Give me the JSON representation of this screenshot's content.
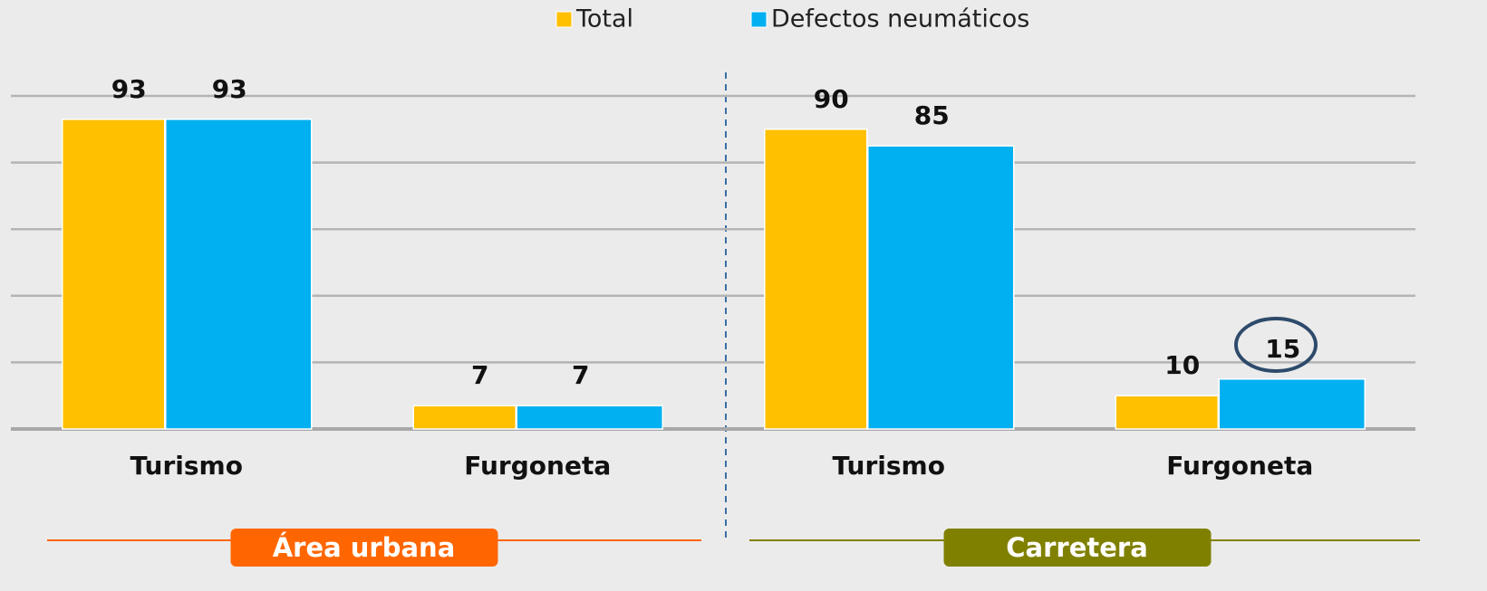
{
  "chart_data": {
    "type": "bar",
    "categories": [
      "Turismo",
      "Furgoneta",
      "Turismo",
      "Furgoneta"
    ],
    "series": [
      {
        "name": "Total",
        "color": "#ffc000",
        "values": [
          93,
          7,
          90,
          10
        ]
      },
      {
        "name": "Defectos neumáticos",
        "color": "#00b0f0",
        "values": [
          93,
          7,
          85,
          15
        ]
      }
    ],
    "groups": [
      {
        "label": "Área urbana",
        "color": "#ff6600"
      },
      {
        "label": "Carretera",
        "color": "#808000"
      }
    ],
    "ylim": [
      0,
      100
    ],
    "yticks": [
      0,
      20,
      40,
      60,
      80,
      100
    ],
    "grid": true,
    "legend": "top"
  }
}
